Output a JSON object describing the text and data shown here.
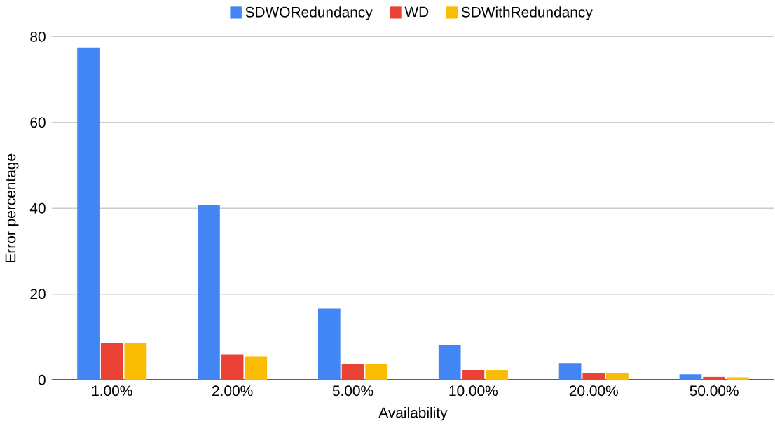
{
  "chart_data": {
    "type": "bar",
    "xlabel": "Availability",
    "ylabel": "Error percentage",
    "categories": [
      "1.00%",
      "2.00%",
      "5.00%",
      "10.00%",
      "20.00%",
      "50.00%"
    ],
    "series": [
      {
        "name": "SDWORedundancy",
        "color": "#4285f4",
        "values": [
          77.5,
          40.7,
          16.6,
          8.1,
          3.9,
          1.3
        ]
      },
      {
        "name": "WD",
        "color": "#ea4335",
        "values": [
          8.5,
          6.0,
          3.6,
          2.3,
          1.6,
          0.7
        ]
      },
      {
        "name": "SDWithRedundancy",
        "color": "#fbbc04",
        "values": [
          8.5,
          5.5,
          3.6,
          2.3,
          1.6,
          0.6
        ]
      }
    ],
    "ylim": [
      0,
      80
    ],
    "yticks": [
      0,
      20,
      40,
      60,
      80
    ],
    "grid": "y",
    "legend": "top"
  }
}
